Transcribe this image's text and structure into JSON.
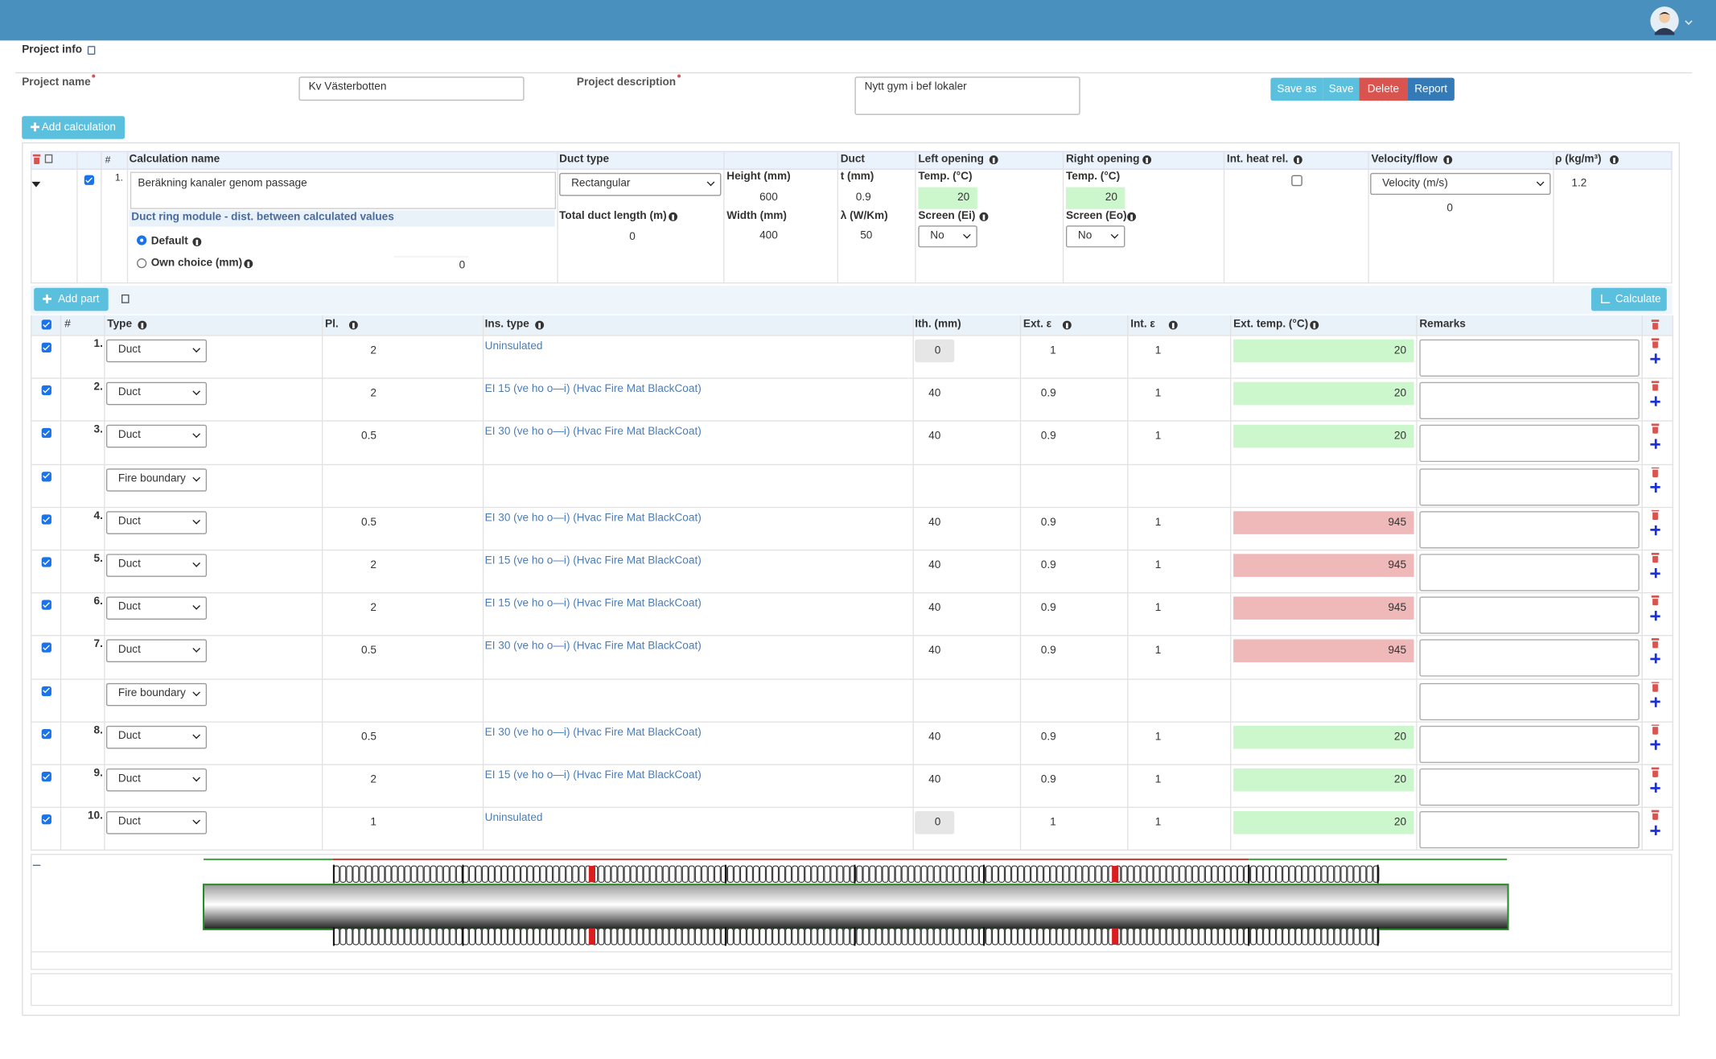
{
  "header": {
    "title": "Project info"
  },
  "project": {
    "name_label": "Project name",
    "name": "Kv Västerbotten",
    "description_label": "Project description",
    "description": "Nytt gym i bef lokaler",
    "buttons": [
      "Save as",
      "Save",
      "Delete",
      "Report"
    ]
  },
  "add_calculation": "Add calculation",
  "calc_table": {
    "headers": {
      "hash": "#",
      "name": "Calculation name",
      "duct_type": "Duct type",
      "duct": "Duct",
      "left": "Left opening",
      "right": "Right opening",
      "int_heat": "Int. heat rel.",
      "velocity": "Velocity/flow",
      "rho": "ρ (kg/m³)"
    },
    "row": {
      "num": "1.",
      "name": "Beräkning kanaler genom passage",
      "ring_module": "Duct ring module - dist. between calculated values",
      "default": "Default",
      "own_choice": "Own choice (mm)",
      "own_choice_value": 0,
      "duct_type": "Rectangular",
      "total_length_label": "Total duct length (m)",
      "total_length": 0,
      "height_label": "Height (mm)",
      "height": 600,
      "width_label": "Width (mm)",
      "width": 400,
      "t_label": "t (mm)",
      "t": 0.9,
      "lambda_label": "λ (W/Km)",
      "lambda": 50,
      "left_temp_label": "Temp. (°C)",
      "left_temp": 20,
      "left_screen_label": "Screen (Ei)",
      "left_screen": "No",
      "right_temp_label": "Temp. (°C)",
      "right_temp": 20,
      "right_screen_label": "Screen (Eo)",
      "right_screen": "No",
      "velocity_mode": "Velocity (m/s)",
      "velocity": 0,
      "rho": 1.2
    }
  },
  "parts": {
    "add_part": "Add part",
    "calculate": "Calculate",
    "headers": {
      "hash": "#",
      "type": "Type",
      "pl": "Pl.",
      "ins_type": "Ins. type",
      "ith": "Ith. (mm)",
      "ext_eps": "Ext. ε",
      "int_eps": "Int. ε",
      "ext_temp": "Ext. temp. (°C)",
      "remarks": "Remarks"
    },
    "rows": [
      {
        "num": "1.",
        "type": "Duct",
        "pl": 2,
        "ins_type": "Uninsulated",
        "ith": 0,
        "ext_eps": 1,
        "int_eps": 1,
        "ext_temp": 20,
        "color": "#ccf7cc"
      },
      {
        "num": "2.",
        "type": "Duct",
        "pl": 2,
        "ins_type": "EI 15 (ve ho o—i) (Hvac Fire Mat BlackCoat)",
        "ith": 40,
        "ext_eps": 0.9,
        "int_eps": 1,
        "ext_temp": 20,
        "color": "#ccf7cc"
      },
      {
        "num": "3.",
        "type": "Duct",
        "pl": 0.5,
        "ins_type": "EI 30 (ve ho o—i) (Hvac Fire Mat BlackCoat)",
        "ith": 40,
        "ext_eps": 0.9,
        "int_eps": 1,
        "ext_temp": 20,
        "color": "#ccf7cc"
      },
      {
        "type": "Fire boundary"
      },
      {
        "num": "4.",
        "type": "Duct",
        "pl": 0.5,
        "ins_type": "EI 30 (ve ho o—i) (Hvac Fire Mat BlackCoat)",
        "ith": 40,
        "ext_eps": 0.9,
        "int_eps": 1,
        "ext_temp": 945,
        "color": "#f0b9b9"
      },
      {
        "num": "5.",
        "type": "Duct",
        "pl": 2,
        "ins_type": "EI 15 (ve ho o—i) (Hvac Fire Mat BlackCoat)",
        "ith": 40,
        "ext_eps": 0.9,
        "int_eps": 1,
        "ext_temp": 945,
        "color": "#f0b9b9"
      },
      {
        "num": "6.",
        "type": "Duct",
        "pl": 2,
        "ins_type": "EI 15 (ve ho o—i) (Hvac Fire Mat BlackCoat)",
        "ith": 40,
        "ext_eps": 0.9,
        "int_eps": 1,
        "ext_temp": 945,
        "color": "#f0b9b9"
      },
      {
        "num": "7.",
        "type": "Duct",
        "pl": 0.5,
        "ins_type": "EI 30 (ve ho o—i) (Hvac Fire Mat BlackCoat)",
        "ith": 40,
        "ext_eps": 0.9,
        "int_eps": 1,
        "ext_temp": 945,
        "color": "#f0b9b9"
      },
      {
        "type": "Fire boundary"
      },
      {
        "num": "8.",
        "type": "Duct",
        "pl": 0.5,
        "ins_type": "EI 30 (ve ho o—i) (Hvac Fire Mat BlackCoat)",
        "ith": 40,
        "ext_eps": 0.9,
        "int_eps": 1,
        "ext_temp": 20,
        "color": "#ccf7cc"
      },
      {
        "num": "9.",
        "type": "Duct",
        "pl": 2,
        "ins_type": "EI 15 (ve ho o—i) (Hvac Fire Mat BlackCoat)",
        "ith": 40,
        "ext_eps": 0.9,
        "int_eps": 1,
        "ext_temp": 20,
        "color": "#ccf7cc"
      },
      {
        "num": "10.",
        "type": "Duct",
        "pl": 1,
        "ins_type": "Uninsulated",
        "ith": 0,
        "ext_eps": 1,
        "int_eps": 1,
        "ext_temp": 20,
        "color": "#ccf7cc"
      }
    ]
  }
}
